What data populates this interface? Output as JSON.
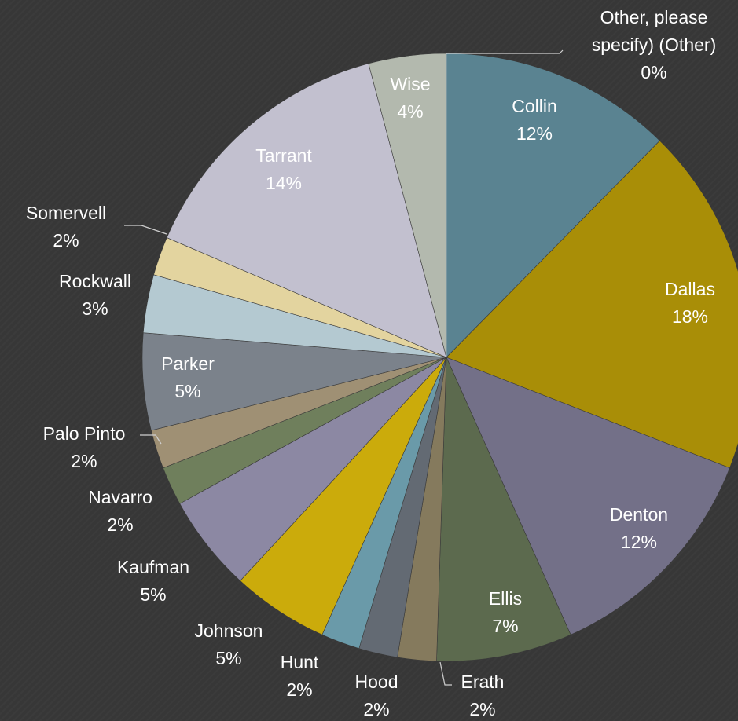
{
  "chart_data": {
    "type": "pie",
    "start_angle_deg": 0,
    "direction": "clockwise",
    "slices": [
      {
        "label": "Collin",
        "value": 12,
        "display": "12%",
        "color": "#5a8391"
      },
      {
        "label": "Dallas",
        "value": 18,
        "display": "18%",
        "color": "#a98e07"
      },
      {
        "label": "Denton",
        "value": 12,
        "display": "12%",
        "color": "#737088"
      },
      {
        "label": "Ellis",
        "value": 7,
        "display": "7%",
        "color": "#5c6a4e"
      },
      {
        "label": "Erath",
        "value": 2,
        "display": "2%",
        "color": "#857a5d"
      },
      {
        "label": "Hood",
        "value": 2,
        "display": "2%",
        "color": "#636a73"
      },
      {
        "label": "Hunt",
        "value": 2,
        "display": "2%",
        "color": "#6a9aa9"
      },
      {
        "label": "Johnson",
        "value": 5,
        "display": "5%",
        "color": "#cbab0b"
      },
      {
        "label": "Kaufman",
        "value": 5,
        "display": "5%",
        "color": "#8c88a3"
      },
      {
        "label": "Navarro",
        "value": 2,
        "display": "2%",
        "color": "#6f7f5c"
      },
      {
        "label": "Palo Pinto",
        "value": 2,
        "display": "2%",
        "color": "#9f9074"
      },
      {
        "label": "Parker",
        "value": 5,
        "display": "5%",
        "color": "#7b828b"
      },
      {
        "label": "Rockwall",
        "value": 3,
        "display": "3%",
        "color": "#b4c9d1"
      },
      {
        "label": "Somervell",
        "value": 2,
        "display": "2%",
        "color": "#e3d49f"
      },
      {
        "label": "Tarrant",
        "value": 14,
        "display": "14%",
        "color": "#c2c0cf"
      },
      {
        "label": "Wise",
        "value": 4,
        "display": "4%",
        "color": "#b3b9ae"
      },
      {
        "label": "Other, please specify) (Other)",
        "value": 0,
        "display": "0%",
        "color": "#8aa6b2"
      }
    ]
  }
}
